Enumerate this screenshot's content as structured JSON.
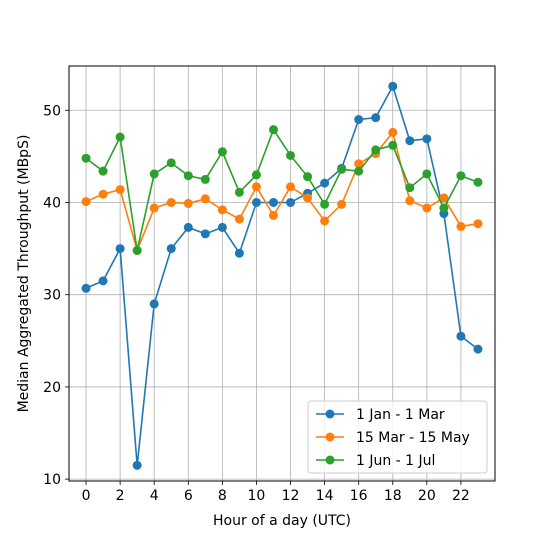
{
  "chart_data": {
    "type": "line",
    "title": "",
    "xlabel": "Hour of a day (UTC)",
    "ylabel": "Median Aggregated Throughput (MBpS)",
    "x": [
      0,
      1,
      2,
      3,
      4,
      5,
      6,
      7,
      8,
      9,
      10,
      11,
      12,
      13,
      14,
      15,
      16,
      17,
      18,
      19,
      20,
      21,
      22,
      23
    ],
    "xlim": [
      -1,
      24
    ],
    "ylim": [
      9.8,
      54.8
    ],
    "xticks": [
      0,
      2,
      4,
      6,
      8,
      10,
      12,
      14,
      16,
      18,
      20,
      22
    ],
    "yticks": [
      10,
      20,
      30,
      40,
      50
    ],
    "grid": true,
    "legend_position": "lower-right",
    "series": [
      {
        "name": "1 Jan - 1 Mar",
        "color": "#1f77b4",
        "values": [
          30.7,
          31.5,
          35.0,
          11.5,
          29.0,
          35.0,
          37.3,
          36.6,
          37.3,
          34.5,
          40.0,
          40.0,
          40.0,
          41.0,
          42.1,
          43.7,
          49.0,
          49.2,
          52.6,
          46.7,
          46.9,
          38.8,
          25.5,
          24.1
        ]
      },
      {
        "name": "15 Mar - 15 May",
        "color": "#ff7f0e",
        "values": [
          40.1,
          40.9,
          41.4,
          34.8,
          39.4,
          40.0,
          39.9,
          40.4,
          39.2,
          38.2,
          41.7,
          38.6,
          41.7,
          40.5,
          38.0,
          39.8,
          44.2,
          45.3,
          47.6,
          40.2,
          39.4,
          40.5,
          37.4,
          37.7
        ]
      },
      {
        "name": "1 Jun - 1 Jul",
        "color": "#2ca02c",
        "values": [
          44.8,
          43.4,
          47.1,
          34.8,
          43.1,
          44.3,
          42.9,
          42.5,
          45.5,
          41.1,
          43.0,
          47.9,
          45.1,
          42.8,
          39.8,
          43.6,
          43.4,
          45.7,
          46.2,
          41.6,
          43.1,
          39.4,
          42.9,
          42.2
        ]
      }
    ]
  }
}
